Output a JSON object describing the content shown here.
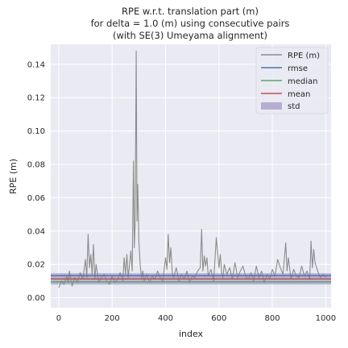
{
  "chart_data": {
    "type": "line",
    "title": [
      "RPE w.r.t. translation part (m)",
      "for delta = 1.0 (m) using consecutive pairs",
      "(with SE(3) Umeyama alignment)"
    ],
    "xlabel": "index",
    "ylabel": "RPE (m)",
    "xlim": [
      -30,
      1020
    ],
    "ylim": [
      -0.006,
      0.152
    ],
    "xticks": [
      0,
      200,
      400,
      600,
      800,
      1000
    ],
    "yticks": [
      0.0,
      0.02,
      0.04,
      0.06,
      0.08,
      0.1,
      0.12,
      0.14
    ],
    "ytick_labels": [
      "0.00",
      "0.02",
      "0.04",
      "0.06",
      "0.08",
      "0.10",
      "0.12",
      "0.14"
    ],
    "grid": true,
    "legend_position": "top-right",
    "stats": {
      "rmse": 0.0132,
      "median": 0.0095,
      "mean": 0.0113,
      "std": 0.0068
    },
    "series": [
      {
        "name": "RPE (m)",
        "color": "#8c8c8c",
        "x": [
          0,
          10,
          20,
          30,
          35,
          40,
          45,
          50,
          60,
          70,
          80,
          90,
          100,
          105,
          110,
          115,
          120,
          125,
          130,
          135,
          140,
          150,
          160,
          170,
          180,
          190,
          200,
          210,
          220,
          230,
          240,
          245,
          250,
          255,
          260,
          265,
          270,
          275,
          280,
          283,
          286,
          290,
          293,
          296,
          300,
          305,
          310,
          315,
          320,
          330,
          340,
          350,
          360,
          370,
          380,
          390,
          400,
          405,
          410,
          415,
          420,
          425,
          430,
          440,
          450,
          460,
          470,
          480,
          490,
          500,
          510,
          520,
          530,
          535,
          540,
          545,
          550,
          555,
          560,
          570,
          580,
          590,
          600,
          605,
          610,
          615,
          620,
          630,
          640,
          650,
          660,
          670,
          680,
          690,
          700,
          710,
          720,
          730,
          740,
          750,
          760,
          770,
          780,
          790,
          800,
          810,
          820,
          830,
          840,
          850,
          855,
          860,
          870,
          880,
          890,
          900,
          910,
          920,
          930,
          940,
          945,
          950,
          955,
          960,
          970,
          980,
          990,
          1000
        ],
        "y": [
          0.006,
          0.01,
          0.008,
          0.013,
          0.009,
          0.016,
          0.011,
          0.007,
          0.012,
          0.009,
          0.015,
          0.011,
          0.023,
          0.012,
          0.038,
          0.018,
          0.026,
          0.014,
          0.032,
          0.011,
          0.02,
          0.009,
          0.012,
          0.014,
          0.01,
          0.008,
          0.013,
          0.009,
          0.011,
          0.015,
          0.01,
          0.024,
          0.014,
          0.026,
          0.012,
          0.02,
          0.028,
          0.016,
          0.082,
          0.03,
          0.044,
          0.148,
          0.046,
          0.068,
          0.034,
          0.02,
          0.012,
          0.016,
          0.01,
          0.014,
          0.009,
          0.013,
          0.011,
          0.016,
          0.012,
          0.01,
          0.024,
          0.017,
          0.038,
          0.021,
          0.03,
          0.015,
          0.012,
          0.018,
          0.01,
          0.014,
          0.011,
          0.016,
          0.009,
          0.013,
          0.012,
          0.016,
          0.018,
          0.041,
          0.016,
          0.025,
          0.019,
          0.024,
          0.013,
          0.017,
          0.01,
          0.036,
          0.018,
          0.026,
          0.015,
          0.012,
          0.02,
          0.014,
          0.018,
          0.011,
          0.021,
          0.012,
          0.016,
          0.019,
          0.013,
          0.011,
          0.015,
          0.01,
          0.019,
          0.012,
          0.016,
          0.009,
          0.014,
          0.011,
          0.017,
          0.013,
          0.023,
          0.018,
          0.014,
          0.033,
          0.016,
          0.024,
          0.011,
          0.017,
          0.013,
          0.012,
          0.019,
          0.013,
          0.016,
          0.011,
          0.034,
          0.018,
          0.029,
          0.021,
          0.016,
          0.012,
          0.014,
          0.012
        ]
      },
      {
        "name": "rmse",
        "color": "#4c72b0"
      },
      {
        "name": "median",
        "color": "#55a868"
      },
      {
        "name": "mean",
        "color": "#c44e52"
      },
      {
        "name": "std",
        "color": "#8172b2"
      }
    ]
  }
}
